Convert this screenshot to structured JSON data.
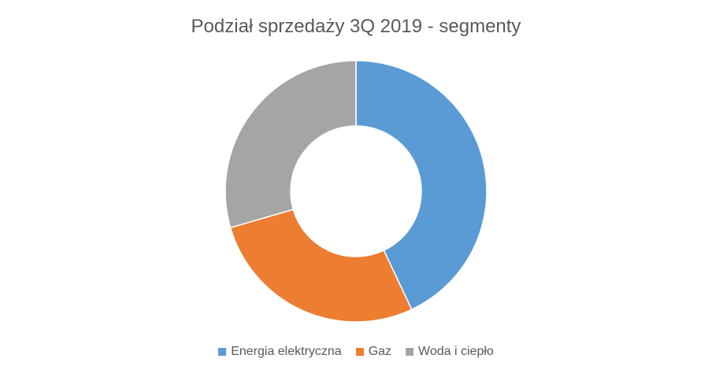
{
  "chart_data": {
    "type": "pie",
    "style": "donut",
    "title": "Podział sprzedaży 3Q 2019 - segmenty",
    "categories": [
      "Energia elektryczna",
      "Gaz",
      "Woda i ciepło"
    ],
    "values": [
      43,
      27.5,
      29.5
    ],
    "colors": [
      "#5B9BD5",
      "#ED7D31",
      "#A5A5A5"
    ],
    "legend_position": "bottom"
  }
}
